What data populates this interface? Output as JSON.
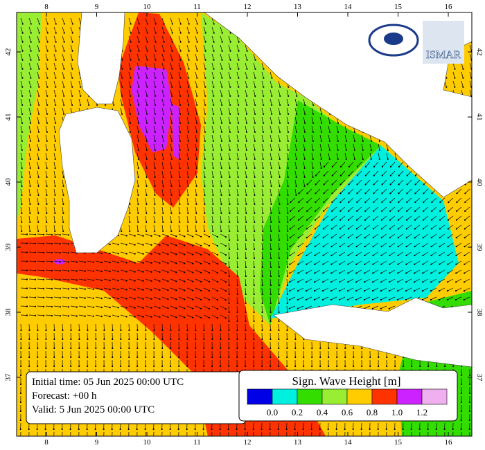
{
  "map": {
    "lon_labels": [
      "8",
      "9",
      "10",
      "11",
      "12",
      "13",
      "14",
      "15",
      "16"
    ],
    "lat_labels": [
      "42",
      "41",
      "40",
      "39",
      "38",
      "37"
    ],
    "info": [
      "Initial time: 05 Jun 2025 00:00 UTC",
      "Forecast: +00 h",
      "Valid:  5 Jun 2025 00:00 UTC"
    ],
    "legend": {
      "title": "Sign. Wave Height [m]",
      "colors": [
        "#0000e6",
        "#00f0e0",
        "#33dd00",
        "#99ee33",
        "#ffcc00",
        "#ff3300",
        "#cc22ff",
        "#f0b0f0"
      ],
      "labels": [
        "0.0",
        "0.2",
        "0.4",
        "0.6",
        "0.8",
        "1.0",
        "1.2"
      ]
    },
    "logo": "ISMAR"
  }
}
